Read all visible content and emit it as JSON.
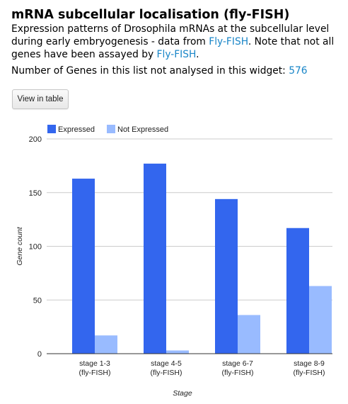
{
  "widget": {
    "title": "mRNA subcellular localisation (fly-FISH)",
    "description_prefix": "Expression patterns of Drosophila mRNAs at the subcellular level during early embryogenesis - data from ",
    "description_link": "Fly-FISH",
    "description_middle": ". Note that not all genes have been assayed by ",
    "description_link2": "Fly-FISH",
    "description_suffix": ".",
    "not_analysed_label": "Number of Genes in this list not analysed in this widget: ",
    "not_analysed_count": "576",
    "view_button": "View in table"
  },
  "chart_data": {
    "type": "bar",
    "categories": [
      [
        "stage 1-3",
        "(fly-FISH)"
      ],
      [
        "stage 4-5",
        "(fly-FISH)"
      ],
      [
        "stage 6-7",
        "(fly-FISH)"
      ],
      [
        "stage 8-9",
        "(fly-FISH)"
      ]
    ],
    "series": [
      {
        "name": "Expressed",
        "values": [
          163,
          177,
          144,
          117
        ],
        "color": "#3366ee"
      },
      {
        "name": "Not Expressed",
        "values": [
          17,
          3,
          36,
          63
        ],
        "color": "#99bbff"
      }
    ],
    "xlabel": "Stage",
    "ylabel": "Gene count",
    "ylim": [
      0,
      200
    ],
    "yticks": [
      0,
      50,
      100,
      150,
      200
    ],
    "grid": true,
    "legend_position": "top-left"
  }
}
